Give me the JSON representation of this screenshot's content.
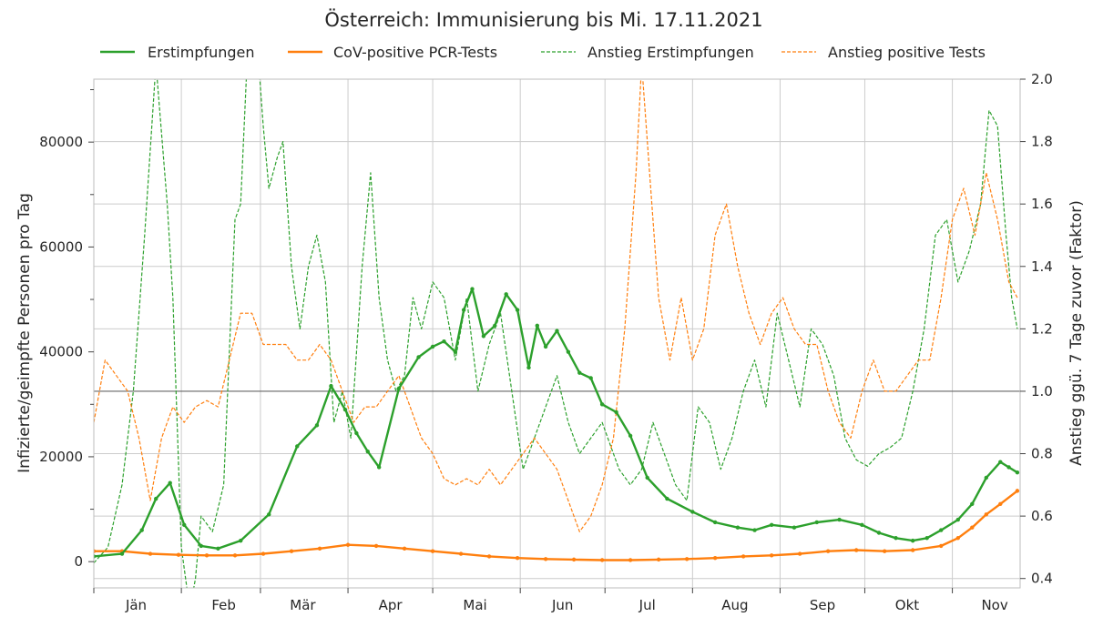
{
  "chart_data": {
    "type": "line",
    "title": "Österreich: Immunisierung bis Mi. 17.11.2021",
    "ylabel": "Infizierte/geimpfte Personen pro Tag",
    "y2label": "Anstieg ggü. 7 Tage zuvor (Faktor)",
    "xlim": [
      0,
      328
    ],
    "ylim": [
      -5000,
      92000
    ],
    "y2lim": [
      0.37,
      2.0
    ],
    "x_ticks": [
      {
        "label": "Jän",
        "x": 3
      },
      {
        "label": "Feb",
        "x": 34
      },
      {
        "label": "Mär",
        "x": 62
      },
      {
        "label": "Apr",
        "x": 93
      },
      {
        "label": "Mai",
        "x": 123
      },
      {
        "label": "Jun",
        "x": 154
      },
      {
        "label": "Jul",
        "x": 184
      },
      {
        "label": "Aug",
        "x": 215
      },
      {
        "label": "Sep",
        "x": 246
      },
      {
        "label": "Okt",
        "x": 276
      },
      {
        "label": "Nov",
        "x": 307
      }
    ],
    "y_ticks": [
      0,
      20000,
      40000,
      60000,
      80000
    ],
    "y2_ticks": [
      "0.4",
      "0.6",
      "0.8",
      "1.0",
      "1.2",
      "1.4",
      "1.6",
      "1.8",
      "2.0"
    ],
    "reference_line_y2": 1.0,
    "grid": true,
    "legend_position": "top",
    "legend": [
      "Erstimpfungen",
      "CoV-positive PCR-Tests",
      "Anstieg Erstimpfungen",
      "Anstieg positive Tests"
    ],
    "colors": {
      "vacc": "#2ca02c",
      "tests": "#ff7f0e",
      "grid": "#cccccc",
      "ref": "#666666"
    },
    "series": [
      {
        "name": "Erstimpfungen",
        "axis": "left",
        "style": "solid",
        "x": [
          0,
          10,
          17,
          22,
          27,
          32,
          38,
          44,
          52,
          62,
          72,
          79,
          84,
          89,
          93,
          97,
          101,
          108,
          115,
          120,
          124,
          128,
          131,
          134,
          138,
          142,
          146,
          150,
          154,
          157,
          160,
          164,
          168,
          172,
          176,
          180,
          185,
          190,
          196,
          203,
          212,
          220,
          228,
          234,
          240,
          248,
          256,
          264,
          272,
          278,
          284,
          290,
          295,
          300,
          306,
          311,
          316,
          321,
          324,
          327
        ],
        "y": [
          1000,
          1500,
          6000,
          12000,
          15000,
          7000,
          3000,
          2500,
          4000,
          9000,
          22000,
          26000,
          33500,
          29000,
          24500,
          21000,
          18000,
          33000,
          39000,
          41000,
          42000,
          40000,
          48000,
          52000,
          43000,
          45000,
          51000,
          48000,
          37000,
          45000,
          41000,
          44000,
          40000,
          36000,
          35000,
          30000,
          28500,
          24000,
          16000,
          12000,
          9500,
          7500,
          6500,
          6000,
          7000,
          6500,
          7500,
          8000,
          7000,
          5500,
          4500,
          4000,
          4500,
          6000,
          8000,
          11000,
          16000,
          19000,
          18000,
          17000
        ]
      },
      {
        "name": "CoV-positive PCR-Tests",
        "axis": "left",
        "style": "solid",
        "x": [
          0,
          10,
          20,
          30,
          40,
          50,
          60,
          70,
          80,
          90,
          100,
          110,
          120,
          130,
          140,
          150,
          160,
          170,
          180,
          190,
          200,
          210,
          220,
          230,
          240,
          250,
          260,
          270,
          280,
          290,
          300,
          306,
          311,
          316,
          321,
          327
        ],
        "y": [
          2000,
          2000,
          1500,
          1300,
          1200,
          1200,
          1500,
          2000,
          2500,
          3200,
          3000,
          2500,
          2000,
          1500,
          1000,
          700,
          500,
          400,
          300,
          300,
          400,
          500,
          700,
          1000,
          1200,
          1500,
          2000,
          2200,
          2000,
          2200,
          3000,
          4500,
          6500,
          9000,
          11000,
          13500
        ]
      },
      {
        "name": "Anstieg Erstimpfungen",
        "axis": "right",
        "style": "dashed",
        "x": [
          0,
          5,
          10,
          14,
          18,
          22,
          26,
          28,
          31,
          34,
          36,
          38,
          42,
          46,
          50,
          52,
          55,
          58,
          60,
          62,
          65,
          67,
          70,
          73,
          76,
          79,
          82,
          85,
          88,
          91,
          95,
          98,
          101,
          104,
          107,
          110,
          113,
          116,
          120,
          124,
          128,
          132,
          136,
          140,
          144,
          148,
          152,
          156,
          160,
          164,
          168,
          172,
          176,
          180,
          186,
          190,
          194,
          198,
          202,
          206,
          210,
          214,
          218,
          222,
          226,
          230,
          234,
          238,
          242,
          246,
          250,
          254,
          258,
          262,
          266,
          270,
          274,
          278,
          282,
          286,
          290,
          294,
          298,
          302,
          306,
          310,
          314,
          317,
          320,
          323,
          325,
          327
        ],
        "y": [
          0.45,
          0.5,
          0.7,
          1.0,
          1.5,
          2.05,
          1.6,
          1.3,
          0.5,
          0.3,
          0.4,
          0.6,
          0.55,
          0.7,
          1.55,
          1.6,
          2.2,
          2.1,
          1.85,
          1.65,
          1.75,
          1.8,
          1.4,
          1.2,
          1.4,
          1.5,
          1.35,
          0.9,
          1.0,
          0.85,
          1.4,
          1.7,
          1.3,
          1.1,
          1.0,
          1.05,
          1.3,
          1.2,
          1.35,
          1.3,
          1.1,
          1.3,
          1.0,
          1.15,
          1.25,
          1.0,
          0.75,
          0.85,
          0.95,
          1.05,
          0.9,
          0.8,
          0.85,
          0.9,
          0.75,
          0.7,
          0.75,
          0.9,
          0.8,
          0.7,
          0.65,
          0.95,
          0.9,
          0.75,
          0.85,
          1.0,
          1.1,
          0.95,
          1.25,
          1.1,
          0.95,
          1.2,
          1.15,
          1.05,
          0.85,
          0.78,
          0.76,
          0.8,
          0.82,
          0.85,
          1.0,
          1.2,
          1.5,
          1.55,
          1.35,
          1.45,
          1.6,
          1.9,
          1.85,
          1.5,
          1.3,
          1.2
        ]
      },
      {
        "name": "Anstieg positive Tests",
        "axis": "right",
        "style": "dashed",
        "x": [
          0,
          4,
          8,
          12,
          16,
          20,
          24,
          28,
          32,
          36,
          40,
          44,
          48,
          52,
          56,
          60,
          64,
          68,
          72,
          76,
          80,
          84,
          88,
          92,
          96,
          100,
          104,
          108,
          112,
          116,
          120,
          124,
          128,
          132,
          136,
          140,
          144,
          148,
          152,
          156,
          160,
          164,
          168,
          172,
          176,
          180,
          184,
          188,
          192,
          194,
          196,
          200,
          204,
          208,
          212,
          216,
          220,
          224,
          228,
          232,
          236,
          240,
          244,
          248,
          252,
          256,
          260,
          264,
          268,
          272,
          276,
          280,
          284,
          288,
          292,
          296,
          300,
          304,
          308,
          312,
          316,
          320,
          324,
          327
        ],
        "y": [
          0.9,
          1.1,
          1.05,
          1.0,
          0.85,
          0.65,
          0.85,
          0.95,
          0.9,
          0.95,
          0.97,
          0.95,
          1.1,
          1.25,
          1.25,
          1.15,
          1.15,
          1.15,
          1.1,
          1.1,
          1.15,
          1.1,
          1.0,
          0.9,
          0.95,
          0.95,
          1.0,
          1.05,
          0.95,
          0.85,
          0.8,
          0.72,
          0.7,
          0.72,
          0.7,
          0.75,
          0.7,
          0.75,
          0.8,
          0.85,
          0.8,
          0.75,
          0.65,
          0.55,
          0.6,
          0.7,
          0.85,
          1.2,
          1.7,
          2.05,
          1.8,
          1.3,
          1.1,
          1.3,
          1.1,
          1.2,
          1.5,
          1.6,
          1.4,
          1.25,
          1.15,
          1.25,
          1.3,
          1.2,
          1.15,
          1.15,
          1.0,
          0.9,
          0.85,
          1.0,
          1.1,
          1.0,
          1.0,
          1.05,
          1.1,
          1.1,
          1.3,
          1.55,
          1.65,
          1.5,
          1.7,
          1.55,
          1.35,
          1.3
        ]
      }
    ]
  }
}
